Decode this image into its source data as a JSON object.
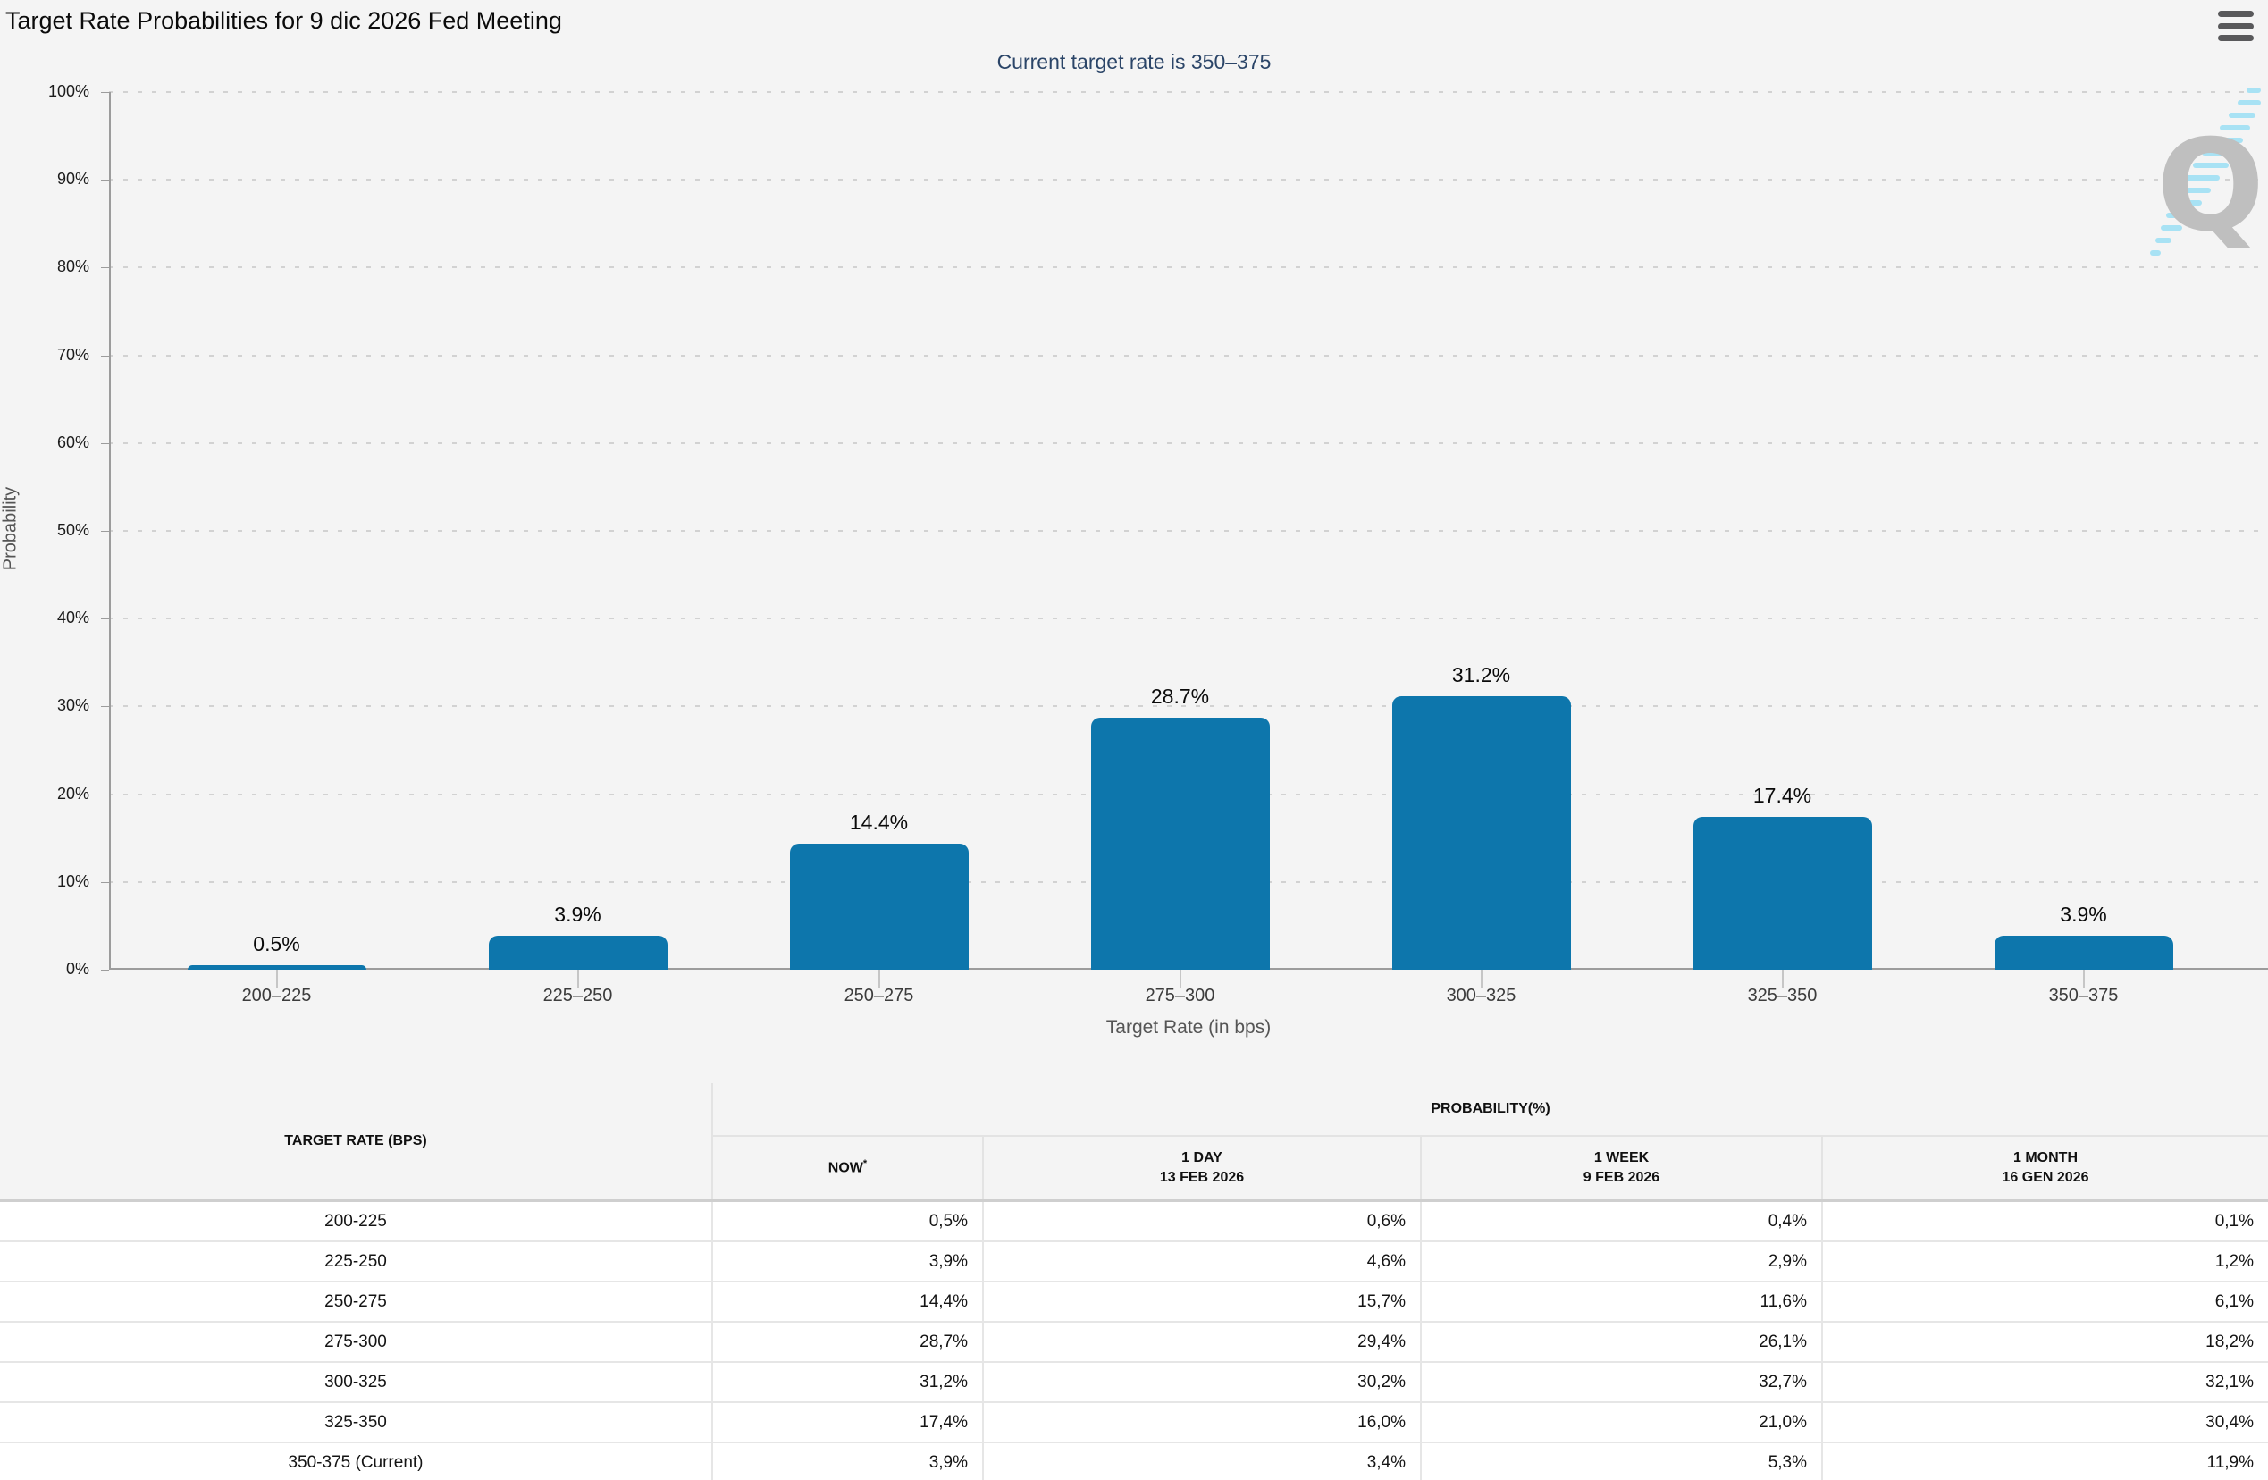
{
  "header": {
    "title": "Target Rate Probabilities for 9 dic 2026 Fed Meeting",
    "subtitle": "Current target rate is 350–375",
    "menu_icon": "hamburger-icon"
  },
  "colors": {
    "bar": "#0d76ac",
    "subtitle_text": "#2b4568",
    "now_column_bg": "#f8f8d8",
    "watermark_gray": "#bfbfbf",
    "watermark_blue": "#a8e2f4",
    "page_bg": "#f4f4f4"
  },
  "chart_data": {
    "type": "bar",
    "categories": [
      "200–225",
      "225–250",
      "250–275",
      "275–300",
      "300–325",
      "325–350",
      "350–375"
    ],
    "values": [
      0.5,
      3.9,
      14.4,
      28.7,
      31.2,
      17.4,
      3.9
    ],
    "bar_labels": [
      "0.5%",
      "3.9%",
      "14.4%",
      "28.7%",
      "31.2%",
      "17.4%",
      "3.9%"
    ],
    "title": "Target Rate Probabilities for 9 dic 2026 Fed Meeting",
    "subtitle": "Current target rate is 350–375",
    "xlabel": "Target Rate (in bps)",
    "ylabel": "Probability",
    "ylim": [
      0,
      100
    ],
    "yticks": [
      "0%",
      "10%",
      "20%",
      "30%",
      "40%",
      "50%",
      "60%",
      "70%",
      "80%",
      "90%",
      "100%"
    ],
    "grid": "dotted-horizontal",
    "legend": "none",
    "watermark": "Q"
  },
  "table": {
    "col1_header": "TARGET RATE (BPS)",
    "group_header": "PROBABILITY(%)",
    "columns": [
      {
        "label": "NOW",
        "sup": "*",
        "sub": ""
      },
      {
        "label": "1 DAY",
        "sup": "",
        "sub": "13 FEB 2026"
      },
      {
        "label": "1 WEEK",
        "sup": "",
        "sub": "9 FEB 2026"
      },
      {
        "label": "1 MONTH",
        "sup": "",
        "sub": "16 GEN 2026"
      }
    ],
    "rows": [
      {
        "rate": "200-225",
        "values": [
          "0,5%",
          "0,6%",
          "0,4%",
          "0,1%"
        ]
      },
      {
        "rate": "225-250",
        "values": [
          "3,9%",
          "4,6%",
          "2,9%",
          "1,2%"
        ]
      },
      {
        "rate": "250-275",
        "values": [
          "14,4%",
          "15,7%",
          "11,6%",
          "6,1%"
        ]
      },
      {
        "rate": "275-300",
        "values": [
          "28,7%",
          "29,4%",
          "26,1%",
          "18,2%"
        ]
      },
      {
        "rate": "300-325",
        "values": [
          "31,2%",
          "30,2%",
          "32,7%",
          "32,1%"
        ]
      },
      {
        "rate": "325-350",
        "values": [
          "17,4%",
          "16,0%",
          "21,0%",
          "30,4%"
        ]
      },
      {
        "rate": "350-375 (Current)",
        "values": [
          "3,9%",
          "3,4%",
          "5,3%",
          "11,9%"
        ]
      }
    ]
  }
}
